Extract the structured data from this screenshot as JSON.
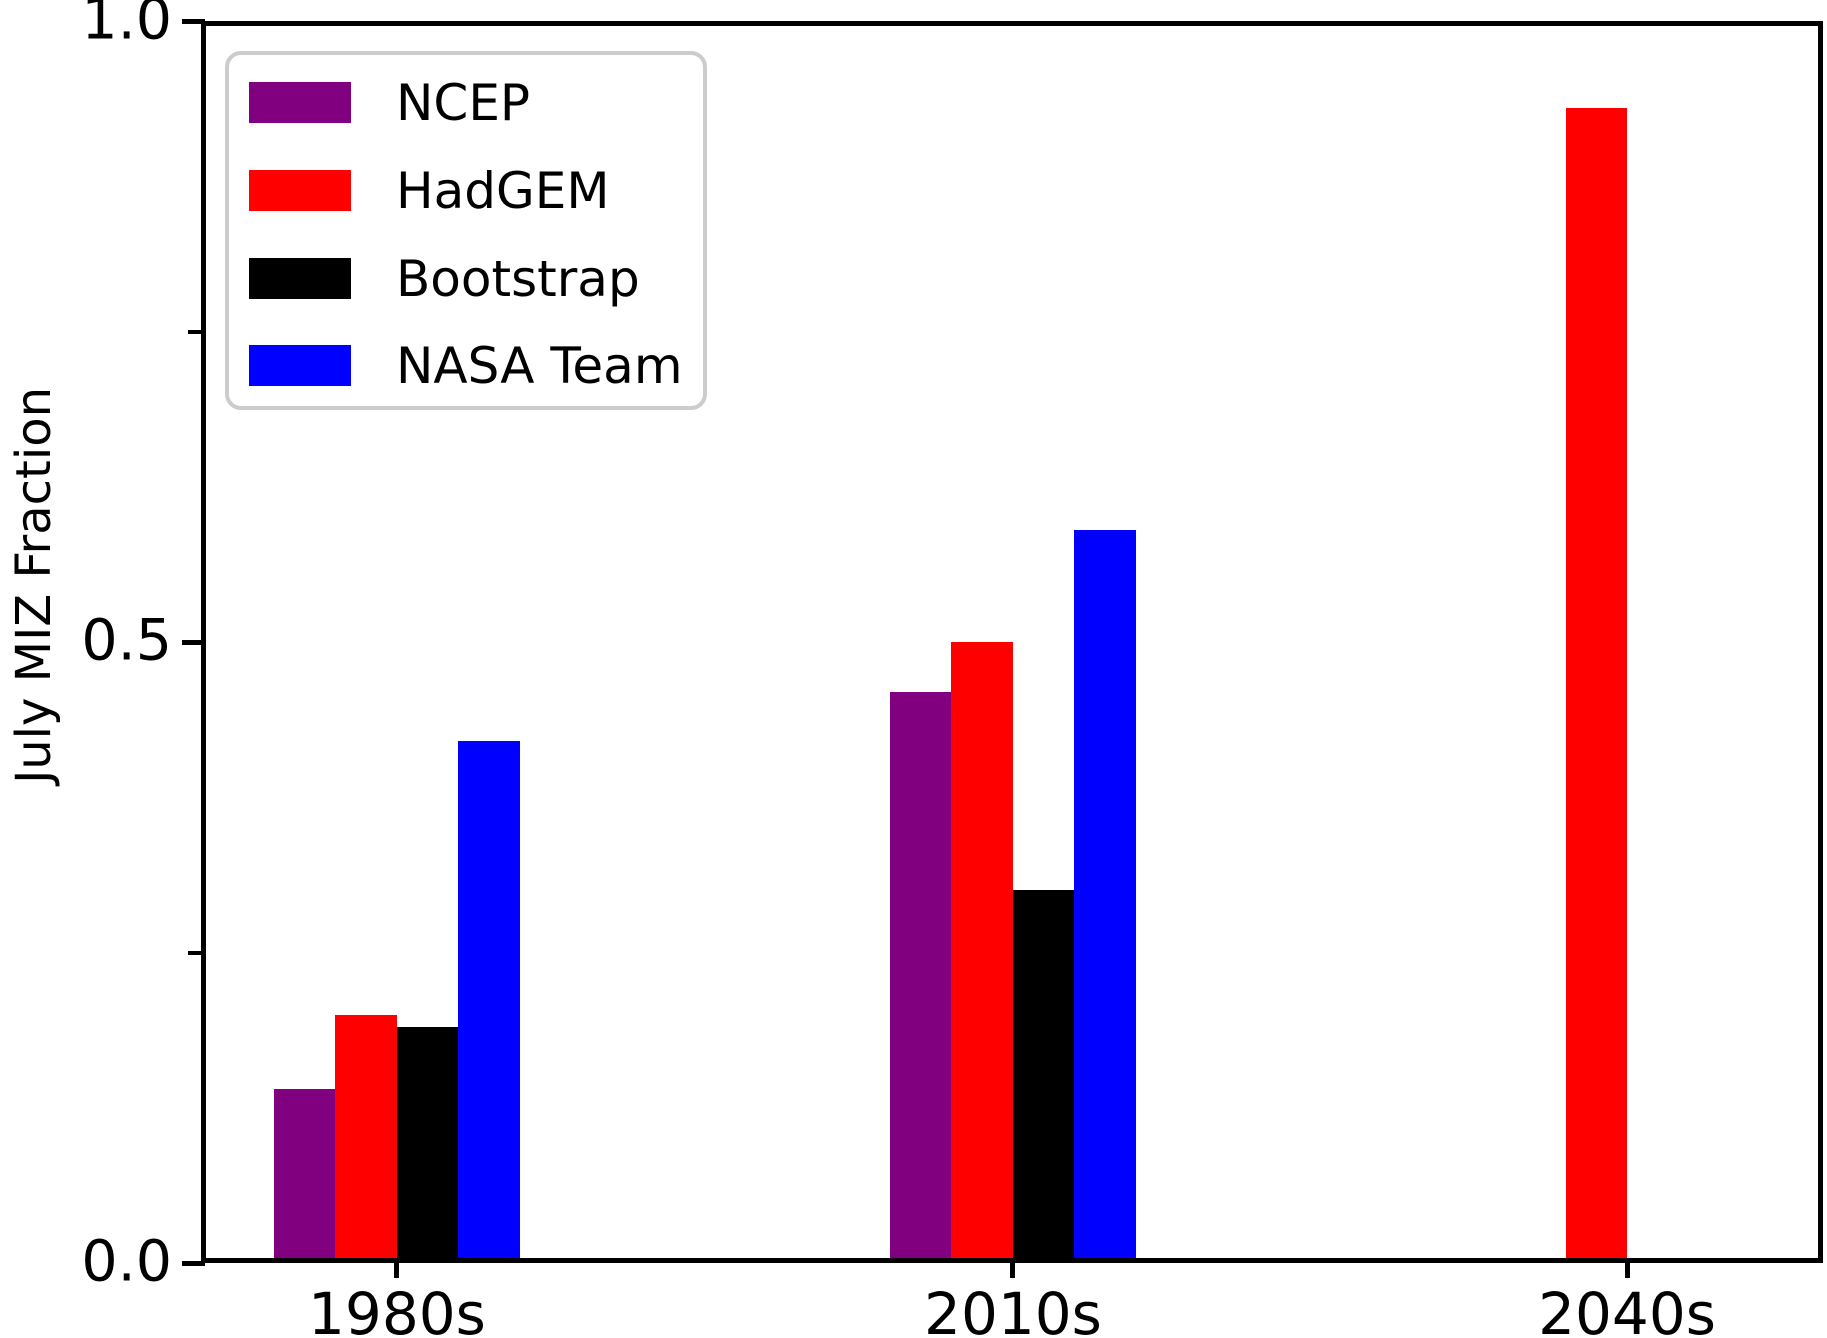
{
  "chart_data": {
    "type": "bar",
    "title": "",
    "ylabel": "July MIZ Fraction",
    "xlabel": "",
    "categories": [
      "1980s",
      "2010s",
      "2040s"
    ],
    "series": [
      {
        "name": "NCEP",
        "color": "#800080",
        "values": [
          0.14,
          0.46,
          null
        ]
      },
      {
        "name": "HadGEM",
        "color": "#ff0000",
        "values": [
          0.2,
          0.5,
          0.93
        ]
      },
      {
        "name": "Bootstrap",
        "color": "#000000",
        "values": [
          0.19,
          0.3,
          null
        ]
      },
      {
        "name": "NASA Team",
        "color": "#0000ff",
        "values": [
          0.42,
          0.59,
          null
        ]
      }
    ],
    "ylim": [
      0,
      1
    ],
    "yticks_major": [
      {
        "value": 0,
        "label": "0.0"
      },
      {
        "value": 0.5,
        "label": "0.5"
      },
      {
        "value": 1,
        "label": "1.0"
      }
    ],
    "yticks_minor": [
      0.25,
      0.75
    ],
    "grid": false,
    "legend_position": "upper left",
    "group_centers_frac": [
      0.1208,
      0.5006,
      0.8792
    ],
    "bar_width_frac": 0.0379
  },
  "colors": {
    "axis": "#000000",
    "legend_border": "#cccccc",
    "background": "#ffffff"
  }
}
